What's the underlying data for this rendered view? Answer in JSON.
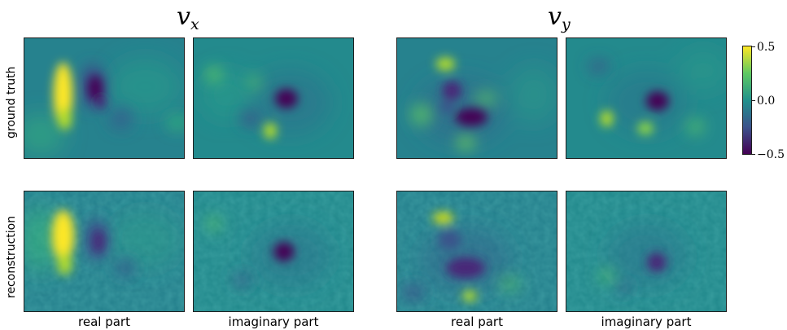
{
  "columns": {
    "vx_symbol": "v",
    "vx_subscript": "x",
    "vy_symbol": "v",
    "vy_subscript": "y"
  },
  "rows": {
    "top": "ground truth",
    "bottom": "reconstruction"
  },
  "sub_columns": {
    "real": "real part",
    "imaginary": "imaginary part"
  },
  "colorbar": {
    "colormap": "viridis",
    "ticks": [
      "0.5",
      "0.0",
      "−0.5"
    ],
    "min": -0.5,
    "max": 0.5,
    "colors": {
      "low": "#440154",
      "mid": "#21918c",
      "high": "#fde725"
    }
  }
}
